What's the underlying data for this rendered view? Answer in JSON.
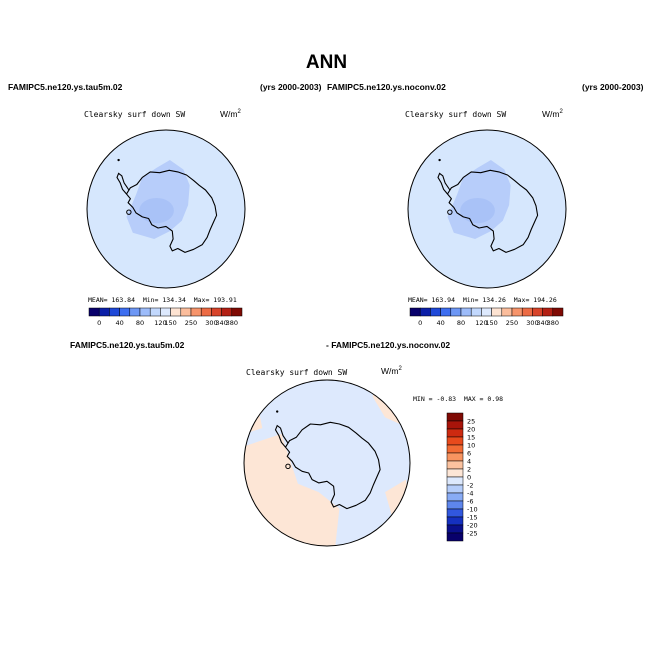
{
  "page": {
    "title": "ANN",
    "left_case": "FAMIPC5.ne120.ys.tau5m.02",
    "left_years": "(yrs 2000-2003)",
    "right_case": "FAMIPC5.ne120.ys.noconv.02",
    "right_years": "(yrs 2000-2003)",
    "diff_case_a": "FAMIPC5.ne120.ys.tau5m.02",
    "diff_case_b": "- FAMIPC5.ne120.ys.noconv.02"
  },
  "chart_data": [
    {
      "type": "heatmap",
      "projection": "polar-stereographic",
      "region": "Antarctica",
      "title": "Clearsky surf down SW",
      "units_base": "W/m",
      "units_exp": "2",
      "stats": {
        "mean_label": "MEAN=",
        "mean": "163.84",
        "min_label": "Min=",
        "min": "134.34",
        "max_label": "Max=",
        "max": "193.91"
      },
      "levels": [
        "0",
        "40",
        "80",
        "120",
        "150",
        "250",
        "300",
        "340",
        "380"
      ],
      "colorbar": [
        "#08006b",
        "#0b1fa8",
        "#1f49d8",
        "#3d6ef0",
        "#6d97f5",
        "#9dbcfa",
        "#c2d8fd",
        "#dde9fd",
        "#fde3d2",
        "#fbbd9c",
        "#f6946b",
        "#ec6b44",
        "#d7442a",
        "#b32014",
        "#7f0a04"
      ],
      "fill_colors": {
        "ocean": "#d6e7fd",
        "continent": "#b7cdfa",
        "interior": "#a9c2f7"
      }
    },
    {
      "type": "heatmap",
      "projection": "polar-stereographic",
      "region": "Antarctica",
      "title": "Clearsky surf down SW",
      "units_base": "W/m",
      "units_exp": "2",
      "stats": {
        "mean_label": "MEAN=",
        "mean": "163.94",
        "min_label": "Min=",
        "min": "134.26",
        "max_label": "Max=",
        "max": "194.26"
      },
      "levels": [
        "0",
        "40",
        "80",
        "120",
        "150",
        "250",
        "300",
        "340",
        "380"
      ],
      "colorbar": [
        "#08006b",
        "#0b1fa8",
        "#1f49d8",
        "#3d6ef0",
        "#6d97f5",
        "#9dbcfa",
        "#c2d8fd",
        "#dde9fd",
        "#fde3d2",
        "#fbbd9c",
        "#f6946b",
        "#ec6b44",
        "#d7442a",
        "#b32014",
        "#7f0a04"
      ],
      "fill_colors": {
        "ocean": "#d6e7fd",
        "continent": "#b7cdfa",
        "interior": "#a9c2f7"
      }
    },
    {
      "type": "heatmap",
      "projection": "polar-stereographic",
      "region": "Antarctica",
      "title": "Clearsky surf down SW",
      "units_base": "W/m",
      "units_exp": "2",
      "stats": {
        "min_label": "MIN =",
        "min": "-0.83",
        "max_label": "MAX =",
        "max": "0.98"
      },
      "levels": [
        "25",
        "20",
        "15",
        "10",
        "6",
        "4",
        "2",
        "0",
        "-2",
        "-4",
        "-6",
        "-10",
        "-15",
        "-20",
        "-25"
      ],
      "colorbar": [
        "#7f0a04",
        "#a8140a",
        "#cd2a10",
        "#e84a1c",
        "#f26b34",
        "#f89460",
        "#fbc29f",
        "#fde6d6",
        "#dde9fd",
        "#b5cdfa",
        "#88abf5",
        "#5e86ec",
        "#3157de",
        "#1530c0",
        "#0a0f8c",
        "#08006b"
      ],
      "fill_colors": {
        "positive": "#fde6d6",
        "negative": "#dde9fd"
      }
    }
  ]
}
